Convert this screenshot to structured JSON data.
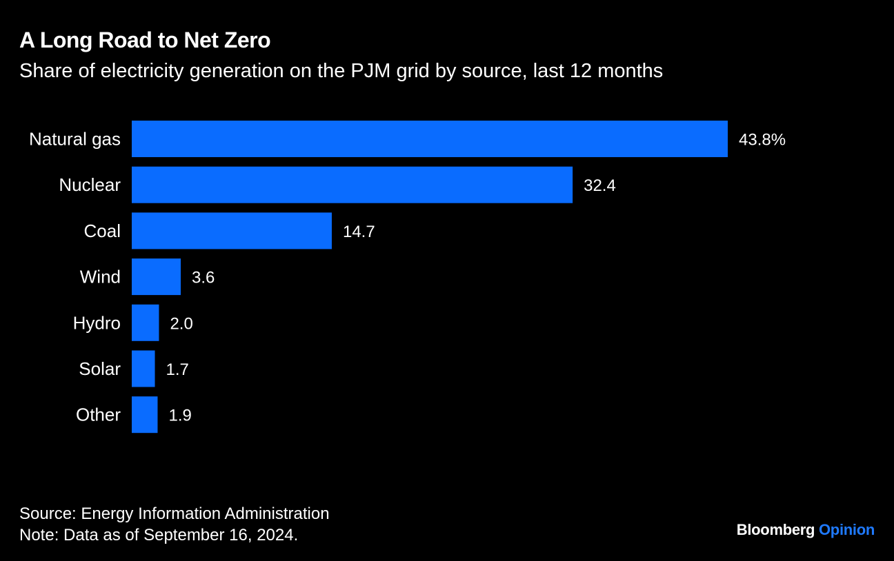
{
  "title": "A Long Road to Net Zero",
  "subtitle": "Share of electricity generation on the PJM grid by source, last 12 months",
  "colors": {
    "background": "#000000",
    "bar": "#0A6CFF",
    "text": "#ffffff",
    "brand_accent": "#1F7AFF"
  },
  "chart_data": {
    "type": "bar",
    "orientation": "horizontal",
    "categories": [
      "Natural gas",
      "Nuclear",
      "Coal",
      "Wind",
      "Hydro",
      "Solar",
      "Other"
    ],
    "values": [
      43.8,
      32.4,
      14.7,
      3.6,
      2.0,
      1.7,
      1.9
    ],
    "value_labels": [
      "43.8%",
      "32.4",
      "14.7",
      "3.6",
      "2.0",
      "1.7",
      "1.9"
    ],
    "unit": "%",
    "xlim": [
      0,
      43.8
    ],
    "grid": false,
    "legend": "none"
  },
  "footer": {
    "source": "Source: Energy Information Administration",
    "note": "Note: Data as of September 16, 2024."
  },
  "brand": {
    "name": "Bloomberg",
    "section": "Opinion"
  }
}
